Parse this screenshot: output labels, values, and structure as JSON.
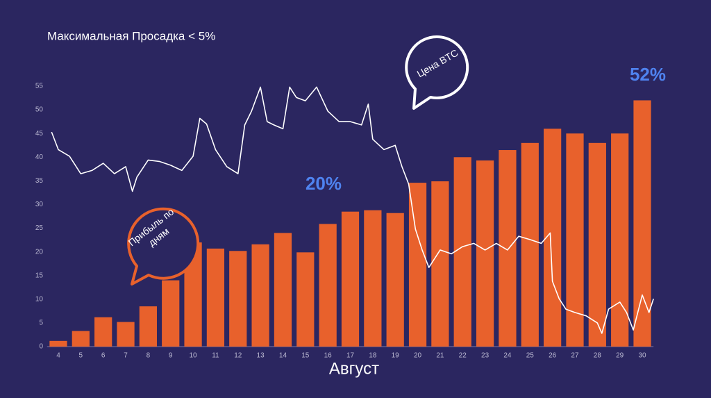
{
  "chart_data": {
    "type": "bar",
    "title": "Максимальная Просадка < 5%",
    "x_label": "Август",
    "annotations": [
      "20%",
      "52%"
    ],
    "categories": [
      "4",
      "5",
      "6",
      "7",
      "8",
      "9",
      "10",
      "11",
      "12",
      "13",
      "14",
      "15",
      "16",
      "17",
      "18",
      "19",
      "20",
      "21",
      "22",
      "23",
      "24",
      "25",
      "26",
      "27",
      "28",
      "29",
      "30"
    ],
    "series": [
      {
        "name": "Прибыль по дням",
        "type": "bar",
        "color": "#e8612c",
        "values": [
          1.2,
          3.3,
          6.2,
          5.2,
          8.5,
          14,
          22,
          20.7,
          20.2,
          21.6,
          24,
          19.9,
          25.9,
          28.5,
          28.8,
          28.2,
          34.6,
          34.9,
          40,
          39.3,
          41.5,
          43,
          46,
          45,
          43,
          45,
          52
        ]
      },
      {
        "name": "Цена BTC",
        "type": "line",
        "color": "#ffffff",
        "x": [
          3.7,
          4,
          4.5,
          5,
          5.5,
          6,
          6.5,
          7,
          7.3,
          7.5,
          8,
          8.5,
          9,
          9.5,
          10,
          10.3,
          10.6,
          11,
          11.5,
          12,
          12.3,
          12.6,
          13,
          13.3,
          13.6,
          14,
          14.3,
          14.6,
          15,
          15.5,
          16,
          16.5,
          17,
          17.5,
          17.8,
          18,
          18.5,
          19,
          19.3,
          19.6,
          19.9,
          20.2,
          20.5,
          21,
          21.5,
          22,
          22.5,
          23,
          23.5,
          24,
          24.5,
          25,
          25.5,
          25.9,
          26,
          26.3,
          26.6,
          27,
          27.5,
          28,
          28.2,
          28.5,
          29,
          29.3,
          29.6,
          30,
          30.3,
          30.5
        ],
        "values": [
          45.3,
          41.6,
          40.2,
          36.5,
          37.2,
          38.7,
          36.5,
          38,
          32.8,
          35.8,
          39.4,
          39.1,
          38.3,
          37.2,
          40.2,
          48.2,
          47,
          41.6,
          38,
          36.5,
          46.8,
          49.7,
          54.8,
          47.5,
          46.8,
          46,
          54.8,
          52.6,
          51.9,
          54.8,
          49.7,
          47.5,
          47.5,
          46.8,
          51.2,
          43.8,
          41.6,
          42.5,
          38,
          34.3,
          24.8,
          20.4,
          16.7,
          20.4,
          19.6,
          21.1,
          21.8,
          20.4,
          21.8,
          20.4,
          23.3,
          22.6,
          21.8,
          24,
          13.8,
          10.1,
          7.9,
          7.2,
          6.5,
          5,
          2.8,
          7.9,
          9.4,
          7.2,
          3.5,
          10.9,
          7.2,
          10.1
        ]
      }
    ],
    "xlim": [
      3.5,
      30.5
    ],
    "ylim": [
      0,
      55
    ],
    "yticks": [
      0,
      5,
      10,
      15,
      20,
      25,
      30,
      35,
      40,
      45,
      50,
      55
    ]
  }
}
